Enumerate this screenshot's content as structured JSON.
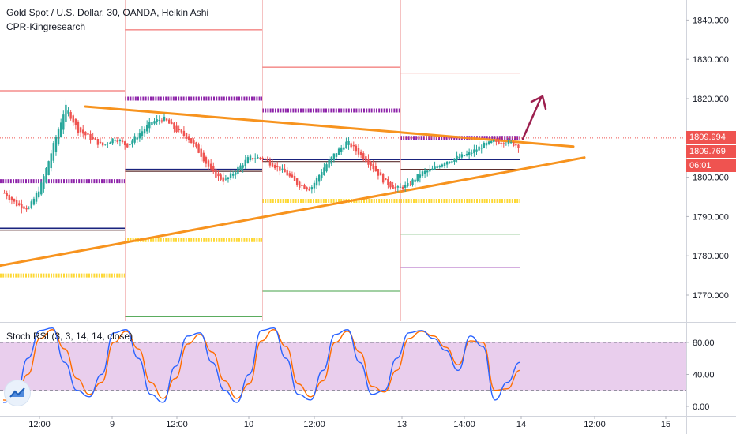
{
  "legend": {
    "title": "Gold Spot / U.S. Dollar, 30, OANDA, Heikin Ashi",
    "indicator": "CPR-Kingresearch",
    "stoch_label": "Stoch RSI (3, 3, 14, 14, close)"
  },
  "price_tags": {
    "last": "1809.994",
    "ha": "1809.769",
    "countdown": "06:01"
  },
  "colors": {
    "up": "#26a69a",
    "down": "#ef5350",
    "trendline": "#f7931e",
    "purple": "#8e24aa",
    "yellow": "#fdd835",
    "arrow": "#9c1f4e",
    "stoch_k": "#2962ff",
    "stoch_d": "#ff6d00",
    "stoch_band": "#e1bee7",
    "last_price": "#ef5350",
    "countdown_bg": "#ef5350",
    "ha_bg": "#ef5350"
  },
  "icons": {
    "logo": "tradingview-logo-icon"
  },
  "chart_data": [
    {
      "type": "candlestick",
      "subtype": "heikin-ashi",
      "title": "Gold Spot / U.S. Dollar, 30, OANDA, Heikin Ashi",
      "x_ticks": [
        "12:00",
        "9",
        "12:00",
        "10",
        "12:00",
        "13",
        "14:00",
        "14",
        "12:00",
        "15"
      ],
      "y_ticks": [
        "1770.000",
        "1780.000",
        "1790.000",
        "1800.000",
        "1810.000",
        "1820.000",
        "1830.000",
        "1840.000"
      ],
      "ylim": [
        1763,
        1845
      ],
      "grid": false,
      "price_path": [
        1796,
        1793,
        1792,
        1798,
        1808,
        1818,
        1812,
        1810,
        1808,
        1810,
        1808,
        1811,
        1814,
        1815,
        1812,
        1810,
        1806,
        1801,
        1799,
        1802,
        1805,
        1805,
        1803,
        1801,
        1798,
        1797,
        1802,
        1806,
        1809,
        1806,
        1803,
        1799,
        1797,
        1798,
        1801,
        1802,
        1804,
        1805,
        1806,
        1808,
        1809,
        1809,
        1808
      ],
      "last_price": 1809.994,
      "ha_close": 1809.769,
      "trendlines": [
        {
          "name": "upper",
          "from": [
            "8 15:30",
            1818
          ],
          "to": [
            "14 01:00",
            1807.8
          ]
        },
        {
          "name": "lower",
          "from": [
            "8 05:30",
            1777.5
          ],
          "to": [
            "14 04:30",
            1805
          ]
        }
      ],
      "cpr_levels": [
        {
          "day": "8",
          "pivot": 1799,
          "tc": 1787,
          "bc": 1786.5,
          "r1": 1822,
          "s1": 1775
        },
        {
          "day": "9",
          "pivot": 1820,
          "tc": 1802,
          "bc": 1801.5,
          "r1": 1837.5,
          "s1": 1784,
          "s2": 1764.5
        },
        {
          "day": "10",
          "pivot": 1817,
          "tc": 1804.5,
          "bc": 1804,
          "r1": 1828,
          "s1": 1794,
          "s2": 1771
        },
        {
          "day": "13",
          "pivot": 1810,
          "tc": 1804.5,
          "bc": 1802,
          "r1": 1826.5,
          "s1": 1794,
          "s2": 1785.5,
          "s3": 1777
        }
      ]
    },
    {
      "type": "line",
      "title": "Stoch RSI (3, 3, 14, 14, close)",
      "y_ticks": [
        "0.00",
        "40.00",
        "80.00"
      ],
      "ylim": [
        -4,
        105
      ],
      "bands": [
        20,
        80
      ],
      "series": [
        {
          "name": "K",
          "values": [
            5,
            8,
            60,
            95,
            98,
            55,
            20,
            12,
            40,
            92,
            96,
            60,
            15,
            5,
            50,
            88,
            92,
            55,
            20,
            5,
            40,
            95,
            98,
            60,
            15,
            8,
            45,
            90,
            96,
            55,
            15,
            20,
            60,
            92,
            95,
            85,
            70,
            45,
            88,
            75,
            8,
            30,
            55
          ]
        },
        {
          "name": "D",
          "values": [
            8,
            6,
            40,
            85,
            96,
            72,
            35,
            15,
            30,
            80,
            94,
            72,
            30,
            10,
            35,
            78,
            90,
            68,
            32,
            10,
            28,
            82,
            96,
            75,
            28,
            12,
            32,
            80,
            94,
            68,
            25,
            18,
            45,
            85,
            94,
            88,
            74,
            52,
            82,
            80,
            20,
            22,
            45
          ]
        }
      ]
    }
  ]
}
